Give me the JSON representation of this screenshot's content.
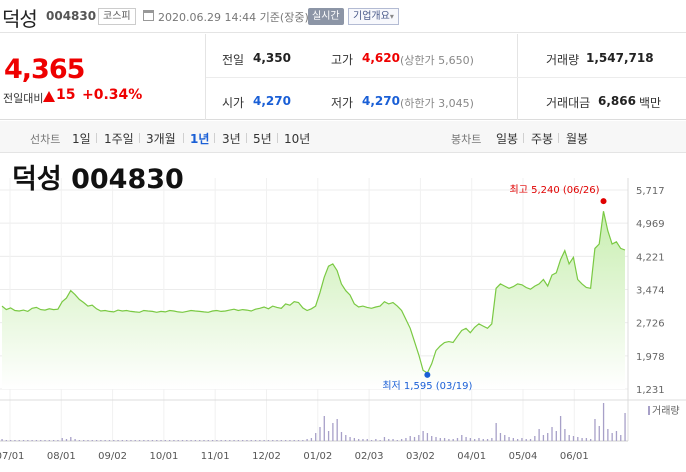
{
  "header": {
    "stock_name": "덕성",
    "stock_code": "004830",
    "market": "코스피",
    "timestamp": "2020.06.29 14:44  기준(장중)",
    "realtime_label": "실시간",
    "corp_info_label": "기업개요",
    "corp_info_arrow": "▾"
  },
  "price": {
    "current": "4,365",
    "change_label": "전일대비",
    "change_value": "15",
    "change_pct": "+0.34%"
  },
  "stats": {
    "prev_close_label": "전일",
    "prev_close": "4,350",
    "open_label": "시가",
    "open": "4,270",
    "high_label": "고가",
    "high": "4,620",
    "upper_limit": "(상한가 5,650)",
    "low_label": "저가",
    "low": "4,270",
    "lower_limit": "(하한가 3,045)",
    "volume_label": "거래량",
    "volume": "1,547,718",
    "amount_label": "거래대금",
    "amount": "6,866",
    "amount_unit": "백만"
  },
  "periods": {
    "line_chart_label": "선차트",
    "line_items": [
      "1일",
      "1주일",
      "3개월",
      "1년",
      "3년",
      "5년",
      "10년"
    ],
    "selected": "1년",
    "candle_label": "봉차트",
    "candle_items": [
      "일봉",
      "주봉",
      "월봉"
    ]
  },
  "chart_title": "덕성 004830",
  "colors": {
    "up": "#e00000",
    "down": "#1a5fd6",
    "line": "#7ac943",
    "fill_top": "#c8eeb0",
    "volume": "#a7a0c8"
  },
  "chart_data": {
    "type": "area",
    "title": "덕성 004830",
    "y_ticks": [
      "5,717",
      "4,969",
      "4,221",
      "3,474",
      "2,726",
      "1,978",
      "1,231"
    ],
    "ylim": [
      1231,
      5717
    ],
    "x_ticks": [
      "07/01",
      "08/01",
      "09/02",
      "10/01",
      "11/01",
      "12/02",
      "01/02",
      "02/03",
      "03/02",
      "04/01",
      "05/04",
      "06/01"
    ],
    "grid": true,
    "series": [
      {
        "values": [
          3100,
          3020,
          3060,
          3000,
          2990,
          3010,
          2980,
          3050,
          3070,
          3020,
          3010,
          3040,
          3020,
          3030,
          3200,
          3280,
          3450,
          3360,
          3250,
          3180,
          3100,
          3120,
          3040,
          2990,
          3000,
          2980,
          2970,
          3010,
          2990,
          3000,
          2980,
          2970,
          2960,
          3000,
          2990,
          2980,
          2960,
          2980,
          2970,
          3000,
          2990,
          2970,
          2960,
          2980,
          3000,
          2990,
          2980,
          2970,
          2960,
          2990,
          3000,
          2980,
          2990,
          3010,
          3030,
          3000,
          3020,
          3010,
          2990,
          3030,
          3050,
          3080,
          3040,
          3100,
          3070,
          3050,
          3150,
          3120,
          3200,
          3180,
          3060,
          3000,
          3040,
          3100,
          3400,
          3750,
          4000,
          4050,
          3900,
          3600,
          3450,
          3350,
          3150,
          3080,
          3100,
          3070,
          3050,
          3080,
          3100,
          3200,
          3150,
          3180,
          3100,
          3000,
          2800,
          2600,
          2300,
          2000,
          1650,
          1595,
          1800,
          2100,
          2200,
          2280,
          2300,
          2280,
          2420,
          2550,
          2600,
          2500,
          2620,
          2700,
          2650,
          2600,
          2700,
          3500,
          3600,
          3550,
          3500,
          3540,
          3600,
          3580,
          3520,
          3480,
          3550,
          3600,
          3700,
          3550,
          3800,
          3850,
          4150,
          4350,
          4050,
          4200,
          3700,
          3600,
          3520,
          3500,
          4400,
          4500,
          5240,
          4800,
          4500,
          4550,
          4400,
          4365
        ]
      }
    ],
    "annotations": {
      "max_label": "최고 5,240 (06/26)",
      "min_label": "최저 1,595 (03/19)"
    },
    "volume_label": "거래량",
    "volume": [
      2,
      1,
      1,
      1,
      1,
      1,
      1,
      1,
      1,
      1,
      1,
      1,
      1,
      1,
      3,
      2,
      4,
      2,
      1,
      1,
      1,
      1,
      1,
      1,
      1,
      1,
      1,
      1,
      1,
      1,
      1,
      1,
      1,
      1,
      1,
      1,
      1,
      1,
      1,
      1,
      1,
      1,
      1,
      1,
      1,
      1,
      1,
      1,
      1,
      1,
      1,
      1,
      1,
      1,
      1,
      1,
      1,
      1,
      1,
      1,
      1,
      1,
      1,
      1,
      1,
      1,
      1,
      1,
      1,
      1,
      1,
      2,
      3,
      8,
      14,
      25,
      10,
      18,
      22,
      9,
      6,
      4,
      3,
      2,
      2,
      2,
      1,
      2,
      1,
      4,
      2,
      2,
      1,
      2,
      3,
      5,
      4,
      6,
      10,
      8,
      5,
      4,
      3,
      3,
      2,
      2,
      3,
      6,
      4,
      3,
      2,
      3,
      2,
      2,
      3,
      18,
      8,
      6,
      4,
      3,
      2,
      3,
      2,
      2,
      5,
      12,
      6,
      8,
      14,
      10,
      25,
      12,
      6,
      5,
      4,
      3,
      3,
      2,
      22,
      15,
      38,
      12,
      8,
      10,
      6,
      28
    ]
  }
}
